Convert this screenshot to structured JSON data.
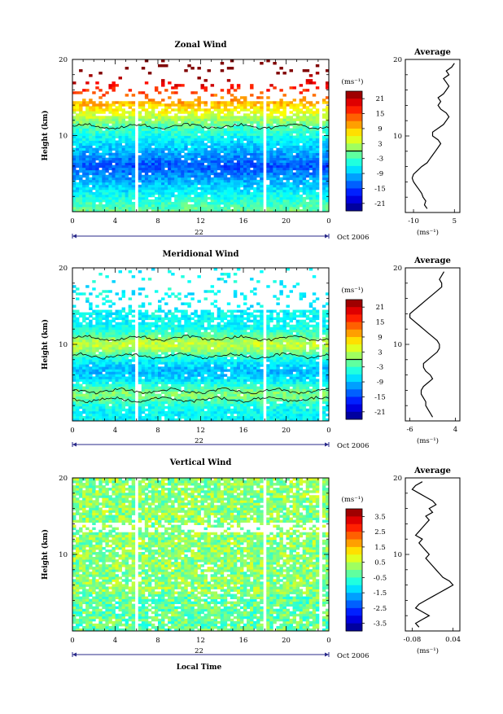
{
  "chart_data": [
    {
      "type": "heatmap",
      "title": "Zonal Wind",
      "ylabel": "Height (km)",
      "xlim": [
        0,
        24
      ],
      "ylim": [
        0,
        20
      ],
      "x_ticks": [
        "0",
        "4",
        "8",
        "12",
        "16",
        "20",
        "0"
      ],
      "y_ticks": [
        "10",
        "20"
      ],
      "date_label": "22",
      "month_label": "Oct 2006",
      "colorbar": {
        "unit": "(ms⁻¹)",
        "ticks": [
          "21",
          "15",
          "9",
          "3",
          "-3",
          "-9",
          "-15",
          "-21"
        ],
        "range": [
          -24,
          24
        ]
      },
      "profile": {
        "title": "Average",
        "xlabel": "(ms⁻¹)",
        "x_ticks": [
          "-10",
          "5"
        ],
        "xlim": [
          -13,
          7
        ],
        "y_ticks": [
          "10",
          "20"
        ],
        "heights": [
          0.5,
          1,
          1.5,
          2,
          2.5,
          3,
          3.5,
          4,
          4.5,
          5,
          5.5,
          6,
          6.5,
          7,
          7.5,
          8,
          8.5,
          9,
          9.5,
          10,
          10.5,
          11,
          11.5,
          12,
          12.5,
          13,
          13.5,
          14,
          14.5,
          15,
          15.5,
          16,
          16.5,
          17,
          17.5,
          18,
          18.5,
          19,
          19.5
        ],
        "values": [
          -5,
          -6,
          -5.5,
          -6.5,
          -7,
          -8,
          -9,
          -10,
          -10.5,
          -10,
          -8.5,
          -7,
          -5,
          -4,
          -3,
          -2,
          -1,
          0,
          -1,
          -3,
          -3,
          -1,
          1,
          2,
          3,
          2,
          0,
          -1,
          0,
          -1,
          1,
          2,
          3,
          2,
          1,
          3,
          2,
          4,
          5
        ]
      }
    },
    {
      "type": "heatmap",
      "title": "Meridional Wind",
      "ylabel": "Height (km)",
      "xlim": [
        0,
        24
      ],
      "ylim": [
        0,
        20
      ],
      "x_ticks": [
        "0",
        "4",
        "8",
        "12",
        "16",
        "20",
        "0"
      ],
      "y_ticks": [
        "10",
        "20"
      ],
      "date_label": "22",
      "month_label": "Oct 2006",
      "colorbar": {
        "unit": "(ms⁻¹)",
        "ticks": [
          "21",
          "15",
          "9",
          "3",
          "-3",
          "-9",
          "-15",
          "-21"
        ],
        "range": [
          -24,
          24
        ]
      },
      "profile": {
        "title": "Average",
        "xlabel": "(ms⁻¹)",
        "x_ticks": [
          "-6",
          "4"
        ],
        "xlim": [
          -7,
          5
        ],
        "y_ticks": [
          "10",
          "20"
        ],
        "heights": [
          0.5,
          1,
          1.5,
          2,
          2.5,
          3,
          3.5,
          4,
          4.5,
          5,
          5.5,
          6,
          6.5,
          7,
          7.5,
          8,
          8.5,
          9,
          9.5,
          10,
          10.5,
          11,
          11.5,
          12,
          12.5,
          13,
          13.5,
          14,
          14.5,
          15,
          15.5,
          16,
          16.5,
          17,
          17.5,
          18,
          18.5,
          19,
          19.5
        ],
        "values": [
          -1,
          -1.5,
          -2,
          -2.5,
          -2.5,
          -3,
          -3.5,
          -3.5,
          -3,
          -2,
          -1,
          -1.5,
          -2.5,
          -3,
          -3,
          -2,
          -1,
          0,
          0.5,
          0.5,
          0,
          -1,
          -2,
          -3,
          -4,
          -5,
          -6,
          -6,
          -5,
          -4,
          -3,
          -2,
          -1,
          0,
          1,
          1,
          0.5,
          1,
          1.5
        ]
      }
    },
    {
      "type": "heatmap",
      "title": "Vertical Wind",
      "ylabel": "Height (km)",
      "xlabel": "Local Time",
      "xlim": [
        0,
        24
      ],
      "ylim": [
        0,
        20
      ],
      "x_ticks": [
        "0",
        "4",
        "8",
        "12",
        "16",
        "20",
        "0"
      ],
      "y_ticks": [
        "10",
        "20"
      ],
      "date_label": "22",
      "month_label": "Oct 2006",
      "colorbar": {
        "unit": "(ms⁻¹)",
        "ticks": [
          "3.5",
          "2.5",
          "1.5",
          "0.5",
          "-0.5",
          "-1.5",
          "-2.5",
          "-3.5"
        ],
        "range": [
          -4,
          4
        ]
      },
      "profile": {
        "title": "Average",
        "xlabel": "(ms⁻¹)",
        "x_ticks": [
          "-0.08",
          "0.04"
        ],
        "xlim": [
          -0.1,
          0.06
        ],
        "y_ticks": [
          "10",
          "20"
        ],
        "heights": [
          0.5,
          1,
          1.5,
          2,
          2.5,
          3,
          3.5,
          4,
          4.5,
          5,
          5.5,
          6,
          6.5,
          7,
          7.5,
          8,
          8.5,
          9,
          9.5,
          10,
          10.5,
          11,
          11.5,
          12,
          12.5,
          13,
          13.5,
          14,
          14.5,
          15,
          15.5,
          16,
          16.5,
          17,
          17.5,
          18,
          18.5,
          19,
          19.5
        ],
        "values": [
          -0.06,
          -0.07,
          -0.05,
          -0.03,
          -0.05,
          -0.07,
          -0.06,
          -0.04,
          -0.02,
          0,
          0.02,
          0.04,
          0.03,
          0.01,
          0,
          -0.01,
          -0.02,
          -0.03,
          -0.04,
          -0.03,
          -0.04,
          -0.05,
          -0.06,
          -0.05,
          -0.07,
          -0.06,
          -0.05,
          -0.04,
          -0.03,
          -0.04,
          -0.02,
          -0.03,
          -0.01,
          -0.02,
          -0.04,
          -0.06,
          -0.08,
          -0.07,
          -0.05
        ]
      }
    }
  ]
}
